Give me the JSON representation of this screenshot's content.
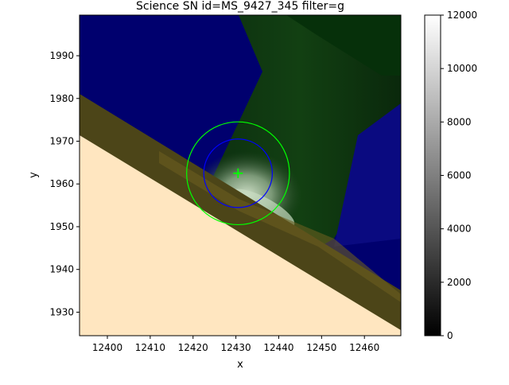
{
  "chart_data": {
    "type": "heatmap",
    "title": "Science SN id=MS_9427_345 filter=g",
    "xlabel": "x",
    "ylabel": "y",
    "xlim": [
      12393.5,
      12468.5
    ],
    "ylim": [
      1924.5,
      1999.5
    ],
    "xticks": [
      12400,
      12410,
      12420,
      12430,
      12440,
      12450,
      12460
    ],
    "yticks": [
      1930,
      1940,
      1950,
      1960,
      1970,
      1980,
      1990
    ],
    "colorbar": {
      "colormap": "gray",
      "range": [
        0,
        12000
      ],
      "ticks": [
        0,
        2000,
        4000,
        6000,
        8000,
        10000,
        12000
      ]
    },
    "regions": [
      {
        "name": "saturated-band",
        "color": "#ffe6c0",
        "boundary_y_at_xmin": 1971,
        "boundary_y_at_xmax": 1925
      },
      {
        "name": "yellow-band",
        "color": "#544c18",
        "width_y": 10
      },
      {
        "name": "mask-blue",
        "color": "#00006e"
      },
      {
        "name": "mask-green",
        "color": "#0a2a0a"
      }
    ],
    "markers": [
      {
        "type": "circle",
        "center": [
          12430.5,
          1962.5
        ],
        "radius": 12,
        "color": "#00ff00"
      },
      {
        "type": "circle",
        "center": [
          12430.5,
          1962.5
        ],
        "radius": 8,
        "color": "#0000ff"
      },
      {
        "type": "cross",
        "center": [
          12430.5,
          1962.5
        ],
        "color": "#00ff00"
      }
    ]
  }
}
